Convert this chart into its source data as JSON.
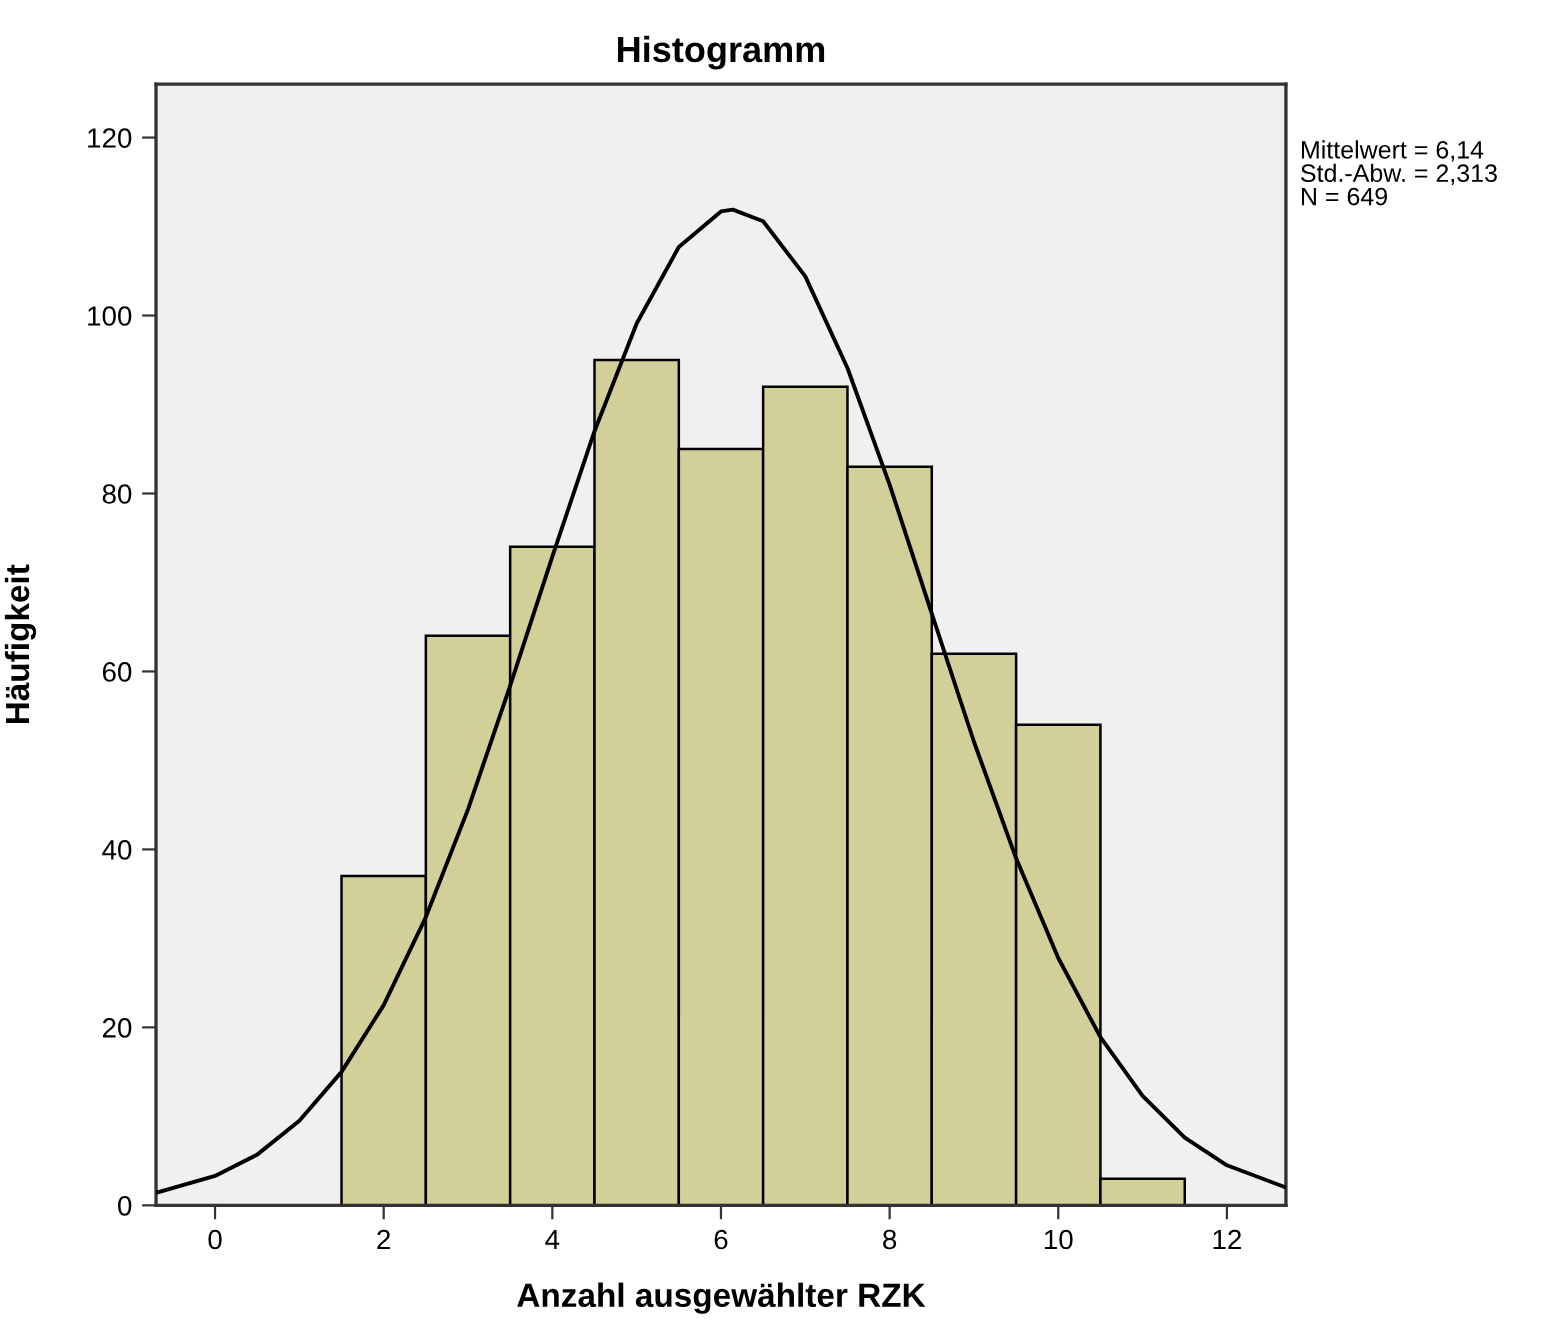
{
  "chart_data": {
    "type": "histogram",
    "title": "Histogramm",
    "xlabel": "Anzahl ausgewählter RZK",
    "ylabel": "Häufigkeit",
    "bins": [
      1.5,
      2.5,
      3.5,
      4.5,
      5.5,
      6.5,
      7.5,
      8.5,
      9.5,
      10.5,
      11.5
    ],
    "values": [
      37,
      64,
      74,
      95,
      85,
      92,
      83,
      62,
      54,
      3
    ],
    "color": "#d3cf98",
    "series": [
      {
        "type": "line",
        "color": "#000000",
        "x": [
          -0.7,
          0,
          0.5,
          1,
          1.5,
          2,
          2.5,
          3,
          3.5,
          4,
          4.5,
          5,
          5.5,
          6,
          6.14,
          6.5,
          7,
          7.5,
          8,
          8.5,
          9,
          9.5,
          10,
          10.5,
          11,
          11.5,
          12,
          12.7
        ],
        "values": [
          1.4,
          3.3,
          5.7,
          9.5,
          15.0,
          22.5,
          32.4,
          44.5,
          58.4,
          72.9,
          87.0,
          99.1,
          107.7,
          111.7,
          111.9,
          110.6,
          104.4,
          94.1,
          81.0,
          66.5,
          52.1,
          39.0,
          27.8,
          18.9,
          12.3,
          7.6,
          4.5,
          2.0
        ]
      }
    ],
    "xlim": [
      -0.7,
      12.7
    ],
    "ylim": [
      0,
      126
    ],
    "xticks": [
      0,
      2,
      4,
      6,
      8,
      10,
      12
    ],
    "yticks": [
      0,
      20,
      40,
      60,
      80,
      100,
      120
    ],
    "grid": false,
    "legend": false,
    "annotations": [
      "Mittelwert = 6,14",
      "Std.-Abw. = 2,313",
      "N = 649"
    ]
  }
}
